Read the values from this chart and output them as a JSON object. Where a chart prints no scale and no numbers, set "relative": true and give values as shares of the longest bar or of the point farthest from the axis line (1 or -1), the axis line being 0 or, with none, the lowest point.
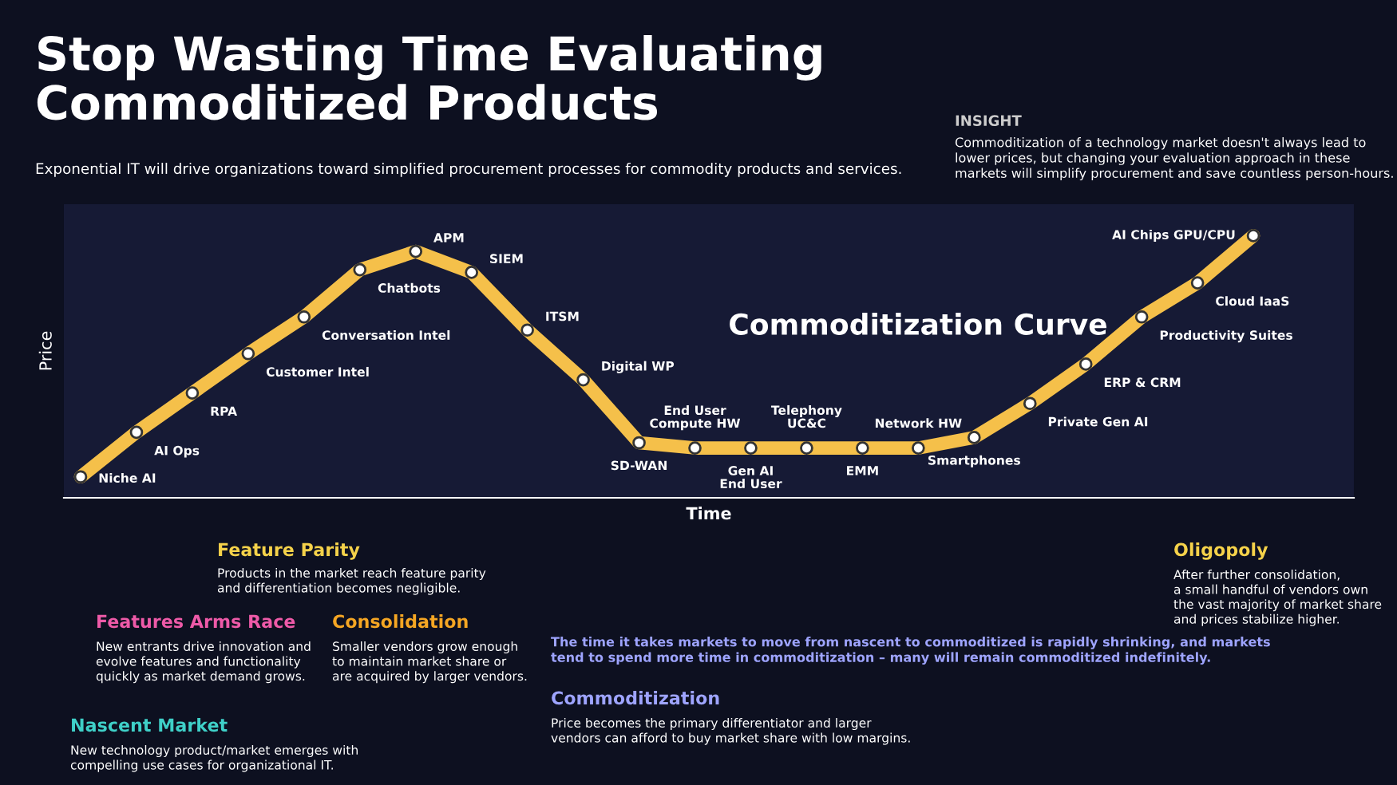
{
  "chart_data": {
    "type": "line",
    "relative": true,
    "title": "Stop Wasting Time Evaluating\nCommoditized Products",
    "subtitle": "Exponential IT will drive organizations toward simplified procurement processes for commodity products and services.",
    "xlabel": "Time",
    "ylabel": "Price",
    "categories": [
      null,
      null,
      null,
      null,
      null,
      null,
      null,
      null,
      null,
      null,
      null,
      null,
      null,
      null,
      null,
      null,
      null,
      null,
      null,
      null,
      null,
      null
    ],
    "series": [
      {
        "color": "#f5c04a",
        "values": [
          0.08,
          0.25,
          0.4,
          0.55,
          0.69,
          0.87,
          0.94,
          0.86,
          0.64,
          0.45,
          0.21,
          0.19,
          0.19,
          0.19,
          0.19,
          0.19,
          0.23,
          0.36,
          0.51,
          0.69,
          0.82,
          1
        ]
      }
    ],
    "marker": "circle",
    "annotations": [
      "Niche AI",
      "AI Ops",
      "RPA",
      "Customer Intel",
      "Conversation Intel",
      "Chatbots",
      "APM",
      "SIEM",
      "ITSM",
      "Digital WP",
      "SD-WAN",
      "End User\nCompute HW",
      "Gen AI\nEnd User",
      "Telephony\nUC&C",
      "EMM",
      "Network HW",
      "Smartphones",
      "Private Gen AI",
      "ERP & CRM",
      "Productivity Suites",
      "Cloud IaaS",
      "AI Chips GPU/CPU",
      "INSIGHT",
      "Commoditization of a technology market doesn't always lead to\nlower prices, but changing your evaluation approach in these\nmarkets will simplify procurement and save countless person-hours.",
      "Commoditization Curve",
      "Feature Parity",
      "Products in the market reach feature parity\nand differentiation becomes negligible.",
      "Features Arms Race",
      "New entrants drive innovation and\nevolve features and functionality\nquickly as market demand grows.",
      "Consolidation",
      "Smaller vendors grow enough\nto maintain market share or\nare acquired by larger vendors.",
      "Nascent Market",
      "New technology product/market emerges with\ncompelling use cases for organizational IT.",
      "The time it takes markets to move from nascent to commoditized is rapidly shrinking, and markets\ntend to spend more time in commoditization – many will remain commoditized indefinitely.",
      "Commoditization",
      "Price becomes the primary differentiator and larger\nvendors can afford to buy market share with low margins.",
      "Oligopoly",
      "After further consolidation,\na small handful of vendors own\nthe vast majority of market share\nand prices stabilize higher."
    ]
  }
}
